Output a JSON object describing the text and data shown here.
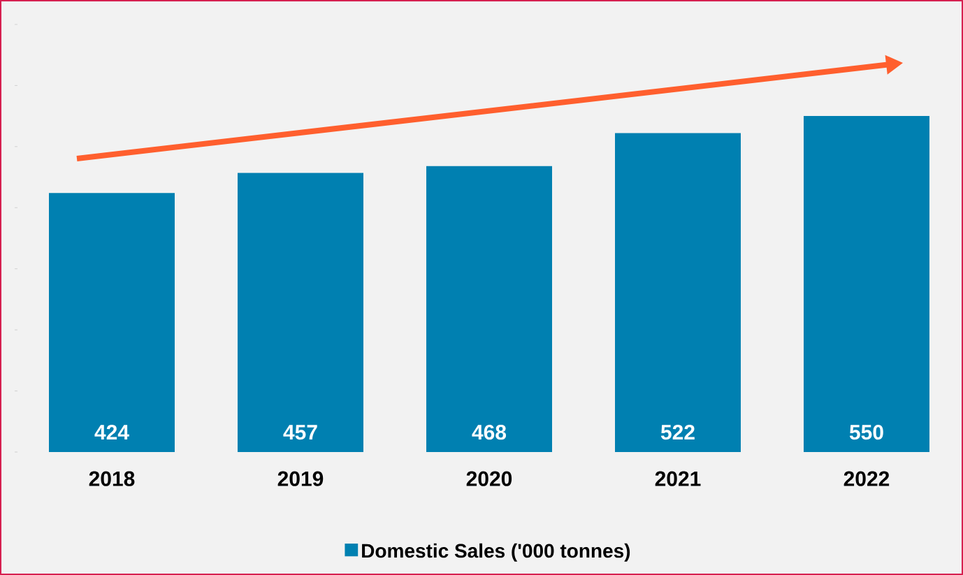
{
  "chart_data": {
    "type": "bar",
    "categories": [
      "2018",
      "2019",
      "2020",
      "2021",
      "2022"
    ],
    "series": [
      {
        "name": "Domestic Sales ('000 tonnes)",
        "color": "#0080b1",
        "values": [
          424,
          457,
          468,
          522,
          550
        ]
      }
    ],
    "yticks": [
      {
        "value": 0,
        "label": null
      },
      {
        "value": 100,
        "label": null
      },
      {
        "value": 200,
        "label": null
      },
      {
        "value": 300,
        "label": null
      },
      {
        "value": 400,
        "label": null
      },
      {
        "value": 500,
        "label": null
      },
      {
        "value": 600,
        "label": null
      },
      {
        "value": 700,
        "label": null
      }
    ],
    "data_labels": true,
    "legend": "bottom",
    "grid": false
  }
}
